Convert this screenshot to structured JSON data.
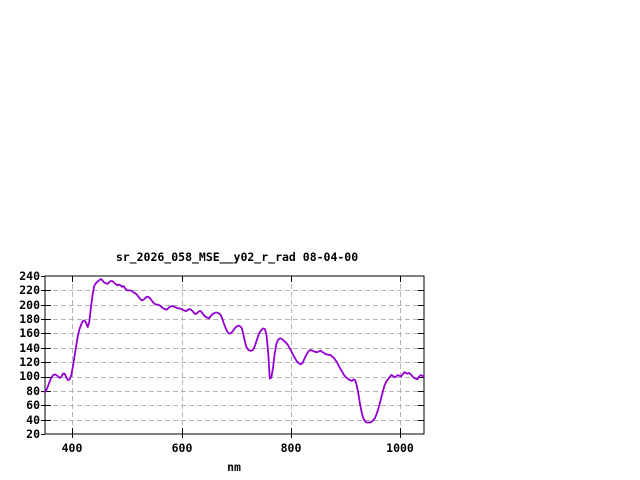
{
  "title": "sr_2026_058_MSE__y02_r_rad 08-04-00",
  "colors": {
    "background": "#ffffff",
    "line": "#9400d3",
    "grid": "#b4b4b4",
    "border": "#000000",
    "text": "#000000"
  },
  "chart_data": {
    "type": "line",
    "title": "sr_2026_058_MSE__y02_r_rad 08-04-00",
    "xlabel": "nm",
    "ylabel": "",
    "xlim": [
      350,
      1043
    ],
    "ylim": [
      20,
      240
    ],
    "xticks": [
      400,
      600,
      800,
      1000
    ],
    "xtick_labels": [
      "400",
      "600",
      "800",
      "1000"
    ],
    "yticks": [
      20,
      40,
      60,
      80,
      100,
      120,
      140,
      160,
      180,
      200,
      220,
      240
    ],
    "ytick_labels": [
      "20",
      "40",
      "60",
      "80",
      "100",
      "120",
      "140",
      "160",
      "180",
      "200",
      "220",
      "240"
    ],
    "grid": true,
    "grid_style": "dashed",
    "legend": "none",
    "series": [
      {
        "name": "sr_2026_058_MSE__y02_r_rad",
        "color": "#9400d3",
        "x": [
          350,
          353,
          356,
          359,
          362,
          365,
          368,
          371,
          374,
          377,
          380,
          383,
          386,
          389,
          392,
          395,
          398,
          401,
          404,
          407,
          410,
          413,
          416,
          419,
          422,
          425,
          428,
          431,
          434,
          437,
          440,
          443,
          446,
          449,
          452,
          455,
          458,
          461,
          464,
          467,
          470,
          473,
          476,
          479,
          482,
          485,
          488,
          491,
          494,
          497,
          500,
          503,
          506,
          509,
          512,
          515,
          518,
          521,
          524,
          527,
          530,
          533,
          536,
          539,
          542,
          545,
          548,
          551,
          554,
          557,
          560,
          563,
          566,
          569,
          572,
          575,
          578,
          581,
          584,
          587,
          590,
          593,
          596,
          599,
          602,
          605,
          608,
          611,
          614,
          617,
          620,
          623,
          626,
          629,
          632,
          635,
          638,
          641,
          644,
          647,
          650,
          653,
          656,
          659,
          662,
          665,
          668,
          671,
          674,
          677,
          680,
          683,
          686,
          689,
          692,
          695,
          698,
          701,
          704,
          707,
          710,
          713,
          716,
          719,
          722,
          725,
          728,
          731,
          734,
          737,
          740,
          743,
          746,
          749,
          752,
          755,
          758,
          761,
          764,
          767,
          770,
          773,
          776,
          779,
          782,
          785,
          788,
          791,
          794,
          797,
          800,
          803,
          806,
          809,
          812,
          815,
          818,
          821,
          824,
          827,
          830,
          833,
          836,
          839,
          842,
          845,
          848,
          851,
          854,
          857,
          860,
          863,
          866,
          869,
          872,
          875,
          878,
          881,
          884,
          887,
          890,
          893,
          896,
          899,
          902,
          905,
          908,
          911,
          914,
          917,
          920,
          923,
          926,
          929,
          932,
          935,
          938,
          941,
          944,
          947,
          950,
          953,
          956,
          959,
          962,
          965,
          968,
          971,
          974,
          977,
          980,
          983,
          986,
          989,
          992,
          995,
          998,
          1001,
          1004,
          1007,
          1010,
          1013,
          1016,
          1019,
          1022,
          1025,
          1028,
          1031,
          1034,
          1037,
          1040,
          1043
        ],
        "y": [
          78,
          82,
          88,
          94,
          99,
          102,
          103,
          102,
          100,
          98,
          100,
          104,
          104,
          99,
          95,
          96,
          102,
          114,
          128,
          143,
          156,
          166,
          172,
          177,
          178,
          175,
          169,
          176,
          196,
          214,
          226,
          230,
          232,
          234,
          236,
          234,
          231,
          230,
          229,
          231,
          233,
          233,
          231,
          229,
          227,
          228,
          227,
          225,
          226,
          222,
          220,
          220,
          220,
          219,
          217,
          216,
          214,
          211,
          208,
          206,
          207,
          209,
          211,
          211,
          209,
          206,
          203,
          201,
          200,
          200,
          199,
          197,
          195,
          194,
          193,
          195,
          197,
          198,
          198,
          197,
          196,
          195,
          195,
          194,
          193,
          192,
          191,
          193,
          194,
          193,
          191,
          188,
          187,
          189,
          191,
          191,
          188,
          185,
          183,
          182,
          181,
          184,
          187,
          188,
          189,
          189,
          188,
          186,
          181,
          174,
          168,
          163,
          160,
          160,
          162,
          165,
          168,
          170,
          171,
          170,
          167,
          158,
          147,
          140,
          137,
          136,
          136,
          138,
          143,
          150,
          157,
          162,
          165,
          167,
          166,
          158,
          135,
          97,
          99,
          113,
          132,
          145,
          151,
          153,
          153,
          151,
          149,
          147,
          144,
          140,
          136,
          131,
          127,
          123,
          120,
          118,
          117,
          119,
          124,
          129,
          133,
          136,
          137,
          136,
          135,
          134,
          134,
          135,
          136,
          134,
          133,
          131,
          131,
          130,
          130,
          128,
          126,
          123,
          120,
          115,
          111,
          107,
          103,
          100,
          98,
          96,
          95,
          94,
          96,
          95,
          88,
          76,
          62,
          50,
          42,
          38,
          36,
          36,
          36,
          37,
          39,
          42,
          47,
          54,
          62,
          71,
          80,
          88,
          93,
          96,
          99,
          102,
          101,
          99,
          100,
          102,
          101,
          100,
          103,
          106,
          105,
          104,
          105,
          103,
          100,
          98,
          97,
          96,
          100,
          102,
          101,
          100
        ]
      }
    ]
  }
}
